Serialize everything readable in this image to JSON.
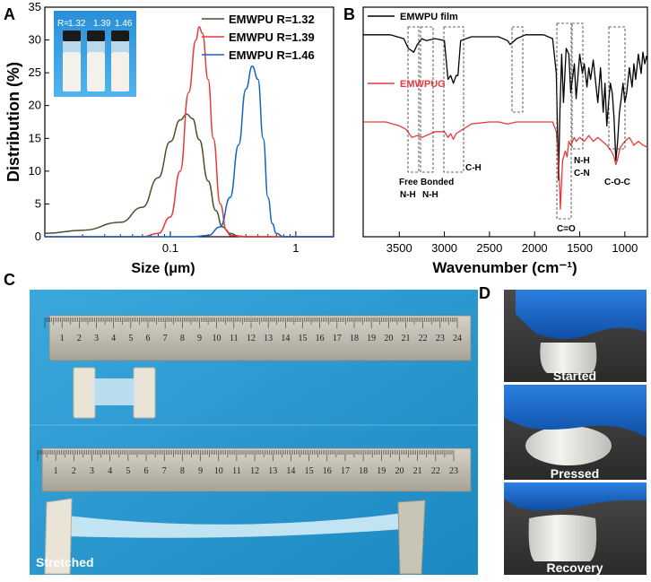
{
  "panels": {
    "a": "A",
    "b": "B",
    "c": "C",
    "d": "D"
  },
  "chart_data": [
    {
      "panel": "A",
      "type": "line",
      "xscale": "log",
      "xlabel": "Size (μm)",
      "ylabel": "Distribution (%)",
      "xlim": [
        0.01,
        2
      ],
      "ylim": [
        0,
        35
      ],
      "xticks": [
        0.1,
        1
      ],
      "xtick_labels": [
        "0.1",
        "1"
      ],
      "yticks": [
        0,
        5,
        10,
        15,
        20,
        25,
        30,
        35
      ],
      "legend_position": "top-right",
      "series": [
        {
          "name": "EMWPU R=1.32",
          "color": "#4b4f2e",
          "x": [
            0.01,
            0.02,
            0.04,
            0.06,
            0.08,
            0.1,
            0.12,
            0.135,
            0.15,
            0.17,
            0.2,
            0.23,
            0.26,
            0.3,
            0.35,
            0.4,
            0.5,
            2.0
          ],
          "y": [
            0.5,
            1.0,
            2.2,
            4.5,
            9.0,
            14.5,
            17.8,
            18.7,
            18.0,
            14.8,
            8.5,
            4.0,
            1.5,
            0.5,
            0.1,
            0.0,
            0.0,
            0.0
          ]
        },
        {
          "name": "EMWPU R=1.39",
          "color": "#e8393b",
          "x": [
            0.01,
            0.06,
            0.08,
            0.1,
            0.12,
            0.14,
            0.16,
            0.17,
            0.18,
            0.2,
            0.22,
            0.25,
            0.28,
            0.3,
            0.4,
            2.0
          ],
          "y": [
            0.0,
            0.0,
            0.5,
            3.0,
            10.0,
            22.0,
            30.0,
            32.0,
            31.0,
            24.0,
            15.0,
            5.0,
            1.0,
            0.2,
            0.0,
            0.0
          ]
        },
        {
          "name": "EMWPU R=1.46",
          "color": "#1565c0",
          "x": [
            0.01,
            0.15,
            0.2,
            0.25,
            0.3,
            0.35,
            0.4,
            0.45,
            0.5,
            0.55,
            0.6,
            0.65,
            0.7,
            0.8,
            2.0
          ],
          "y": [
            0.0,
            0.0,
            0.2,
            1.5,
            6.0,
            14.0,
            22.5,
            26.0,
            24.0,
            15.0,
            6.0,
            2.0,
            0.5,
            0.0,
            0.0
          ]
        }
      ],
      "inset": {
        "label_prefix": "R=",
        "ratios": [
          "1.32",
          "1.39",
          "1.46"
        ]
      }
    },
    {
      "panel": "B",
      "type": "line",
      "xlabel": "Wavenumber (cm⁻¹)",
      "xlim": [
        3900,
        750
      ],
      "xticks": [
        3500,
        3000,
        2500,
        2000,
        1500,
        1000
      ],
      "xtick_labels": [
        "3500",
        "3000",
        "2500",
        "2000",
        "1500",
        "1000"
      ],
      "legend_position": "top-left",
      "series": [
        {
          "name": "EMWPU film",
          "color": "#000000",
          "x": [
            3900,
            3600,
            3450,
            3400,
            3340,
            3300,
            3250,
            3200,
            3100,
            3000,
            2960,
            2930,
            2900,
            2870,
            2850,
            2820,
            2700,
            2400,
            2300,
            2270,
            2200,
            2100,
            1900,
            1800,
            1760,
            1735,
            1720,
            1700,
            1680,
            1650,
            1620,
            1600,
            1560,
            1540,
            1500,
            1470,
            1450,
            1420,
            1400,
            1380,
            1350,
            1300,
            1270,
            1240,
            1220,
            1200,
            1180,
            1160,
            1140,
            1120,
            1100,
            1080,
            1060,
            1040,
            1020,
            1000,
            980,
            950,
            920,
            900,
            880,
            850,
            820,
            800,
            780,
            760,
            750
          ],
          "y": [
            0.95,
            0.95,
            0.93,
            0.88,
            0.86,
            0.9,
            0.93,
            0.92,
            0.93,
            0.92,
            0.72,
            0.74,
            0.7,
            0.74,
            0.74,
            0.92,
            0.94,
            0.94,
            0.92,
            0.9,
            0.93,
            0.95,
            0.95,
            0.93,
            0.75,
            0.2,
            0.55,
            0.85,
            0.6,
            0.88,
            0.85,
            0.65,
            0.8,
            0.62,
            0.85,
            0.75,
            0.8,
            0.68,
            0.78,
            0.72,
            0.82,
            0.6,
            0.78,
            0.55,
            0.7,
            0.48,
            0.6,
            0.7,
            0.65,
            0.52,
            0.3,
            0.4,
            0.55,
            0.62,
            0.7,
            0.6,
            0.65,
            0.78,
            0.68,
            0.8,
            0.72,
            0.85,
            0.75,
            0.86,
            0.8,
            0.84,
            0.82
          ]
        },
        {
          "name": "EMWPUG",
          "color": "#e8393b",
          "x": [
            3900,
            3800,
            3650,
            3500,
            3420,
            3360,
            3300,
            3250,
            3200,
            3100,
            3000,
            2960,
            2930,
            2900,
            2870,
            2800,
            2700,
            2500,
            2400,
            2300,
            2200,
            2000,
            1900,
            1800,
            1760,
            1740,
            1725,
            1715,
            1705,
            1690,
            1660,
            1640,
            1620,
            1600,
            1560,
            1540,
            1500,
            1450,
            1400,
            1350,
            1300,
            1250,
            1200,
            1150,
            1120,
            1100,
            1085,
            1070,
            1050,
            1000,
            950,
            900,
            850,
            800,
            750
          ],
          "y": [
            0.5,
            0.5,
            0.5,
            0.48,
            0.46,
            0.42,
            0.43,
            0.42,
            0.43,
            0.45,
            0.45,
            0.42,
            0.44,
            0.41,
            0.44,
            0.46,
            0.49,
            0.5,
            0.5,
            0.49,
            0.5,
            0.5,
            0.5,
            0.5,
            0.45,
            0.32,
            0.2,
            0.05,
            0.15,
            0.3,
            0.35,
            0.32,
            0.4,
            0.38,
            0.42,
            0.4,
            0.42,
            0.4,
            0.43,
            0.4,
            0.42,
            0.4,
            0.38,
            0.35,
            0.32,
            0.28,
            0.3,
            0.33,
            0.37,
            0.4,
            0.42,
            0.38,
            0.4,
            0.38,
            0.37
          ]
        }
      ],
      "annotations": {
        "free": "Free",
        "free_nh": "N-H",
        "bonded": "Bonded",
        "bonded_nh": "N-H",
        "ch": "C-H",
        "co": "C=O",
        "nh": "N-H",
        "cn": "C-N",
        "coc": "C-O-C"
      }
    }
  ],
  "photo_c": {
    "ruler_top_numbers": [
      "1",
      "2",
      "3",
      "4",
      "5",
      "6",
      "7",
      "8",
      "9",
      "10",
      "11",
      "12",
      "13",
      "14",
      "15",
      "16",
      "17",
      "18",
      "19",
      "20",
      "21",
      "22",
      "23",
      "24"
    ],
    "ruler_bottom_numbers": [
      "1",
      "2",
      "3",
      "4",
      "5",
      "6",
      "7",
      "8",
      "9",
      "10",
      "11",
      "12",
      "13",
      "14",
      "15",
      "16",
      "17",
      "18",
      "19",
      "20",
      "21",
      "22",
      "23"
    ],
    "label": "Stretched"
  },
  "photo_d": {
    "labels": [
      "Started",
      "Pressed",
      "Recovery"
    ]
  },
  "colors": {
    "r132": "#4b4f2e",
    "r139": "#e8393b",
    "r146": "#1565c0",
    "film": "#000000",
    "gel": "#e8393b",
    "photo_bg_c": "#2c9fd3",
    "photo_bg_d": "#3a3a3a",
    "glove": "#1c6fd0"
  }
}
